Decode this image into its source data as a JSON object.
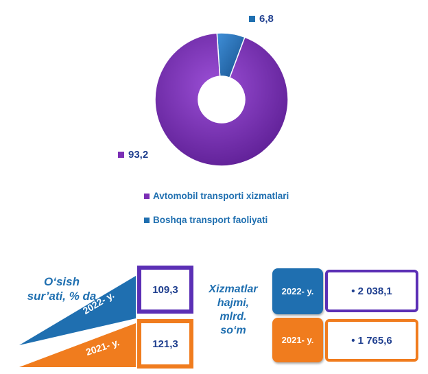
{
  "chart_data": {
    "type": "pie",
    "style": "donut",
    "slices": [
      {
        "label": "Avtomobil transporti xizmatlari",
        "value": 93.2,
        "value_label": "93,2",
        "color": "#7b2fb5"
      },
      {
        "label": "Boshqa transport faoliyati",
        "value": 6.8,
        "value_label": "6,8",
        "color": "#1f6fb0"
      }
    ],
    "legend_placement": "bottom"
  },
  "growth": {
    "title_line1": "O‘sish",
    "title_line2": "sur’ati, % da",
    "rows": [
      {
        "year": "2022- y.",
        "value": "109,3",
        "color": "#1f6fb0"
      },
      {
        "year": "2021- y.",
        "value": "121,3",
        "color": "#f07c1e"
      }
    ]
  },
  "volume": {
    "title_line1": "Xizmatlar",
    "title_line2": "hajmi,",
    "title_line3": "mlrd.",
    "title_line4": "so‘m",
    "rows": [
      {
        "year": "2022- y.",
        "value": "• 2 038,1",
        "color": "#1f6fb0"
      },
      {
        "year": "2021- y.",
        "value": "• 1 765,6",
        "color": "#f07c1e"
      }
    ]
  }
}
